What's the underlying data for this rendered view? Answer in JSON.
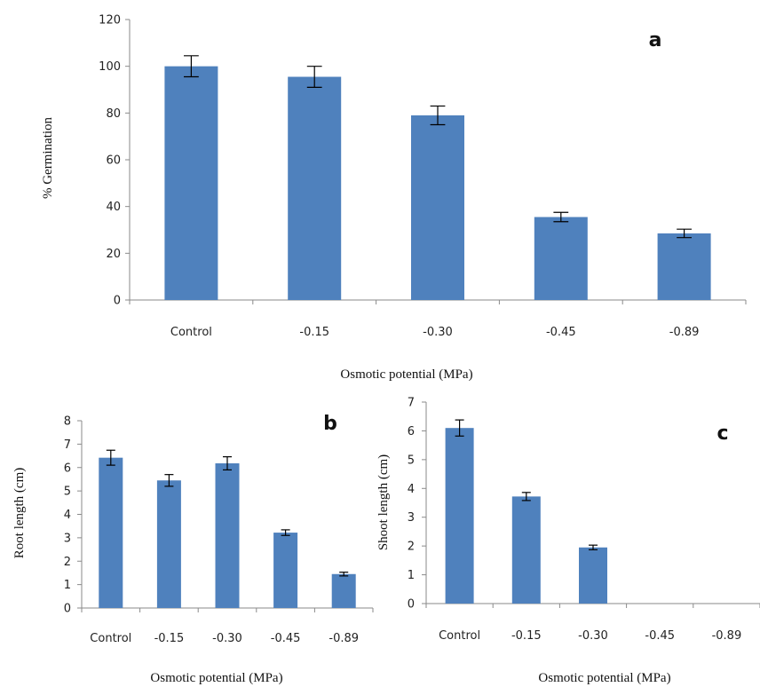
{
  "colors": {
    "bar": "#4f81bd",
    "axis": "#8a8a8a",
    "error_bar": "#000000"
  },
  "chart_data": [
    {
      "id": "a",
      "type": "bar",
      "panel_label": "a",
      "categories": [
        "Control",
        "-0.15",
        "-0.30",
        "-0.45",
        "-0.89"
      ],
      "values": [
        100,
        95.5,
        79,
        35.5,
        28.5
      ],
      "errors": [
        4.5,
        4.5,
        4.0,
        2.0,
        1.8
      ],
      "ylim": [
        0,
        120
      ],
      "yticks": [
        0,
        20,
        40,
        60,
        80,
        100,
        120
      ],
      "xlabel": "Osmotic potential (MPa)",
      "ylabel": "% Germination",
      "grid": false,
      "legend": false
    },
    {
      "id": "b",
      "type": "bar",
      "panel_label": "b",
      "categories": [
        "Control",
        "-0.15",
        "-0.30",
        "-0.45",
        "-0.89"
      ],
      "values": [
        6.42,
        5.45,
        6.18,
        3.22,
        1.45
      ],
      "errors": [
        0.32,
        0.25,
        0.28,
        0.12,
        0.08
      ],
      "ylim": [
        0,
        8
      ],
      "yticks": [
        0,
        1,
        2,
        3,
        4,
        5,
        6,
        7,
        8
      ],
      "xlabel": "Osmotic potential (MPa)",
      "ylabel": "Root length (cm)",
      "grid": false,
      "legend": false
    },
    {
      "id": "c",
      "type": "bar",
      "panel_label": "c",
      "categories": [
        "Control",
        "-0.15",
        "-0.30",
        "-0.45",
        "-0.89"
      ],
      "values": [
        6.1,
        3.72,
        1.95,
        0,
        0
      ],
      "errors": [
        0.28,
        0.14,
        0.08,
        0,
        0
      ],
      "ylim": [
        0,
        7
      ],
      "yticks": [
        0,
        1,
        2,
        3,
        4,
        5,
        6,
        7
      ],
      "xlabel": "Osmotic potential (MPa)",
      "ylabel": "Shoot length (cm)",
      "grid": false,
      "legend": false
    }
  ]
}
